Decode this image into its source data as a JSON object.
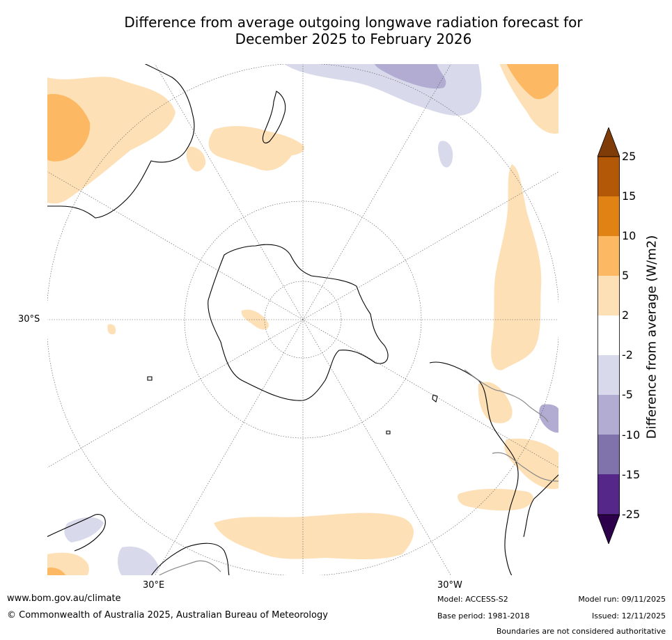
{
  "title": {
    "line1": "Difference from average outgoing longwave radiation forecast for",
    "line2": "December 2025 to February 2026"
  },
  "axis_labels": {
    "left_lat": "30°S",
    "bottom_left_lon": "30°E",
    "bottom_right_lon": "30°W"
  },
  "colorbar": {
    "label": "Difference from average (W/m2)",
    "ticks": [
      "25",
      "15",
      "10",
      "5",
      "2",
      "-2",
      "-5",
      "-10",
      "-15",
      "-25"
    ],
    "colors": {
      "gt25": "#7f3b08",
      "15_25": "#b35806",
      "10_15": "#e08214",
      "5_10": "#fdb863",
      "2_5": "#fee0b6",
      "m2_2": "#ffffff",
      "m5_m2": "#d8daeb",
      "m10_m5": "#b2abd2",
      "m15_m10": "#8073ac",
      "m25_m15": "#542788",
      "lt_m25": "#2d004b"
    }
  },
  "footer": {
    "url": "www.bom.gov.au/climate",
    "copyright": "© Commonwealth of Australia 2025, Australian Bureau of Meteorology",
    "model": "Model: ACCESS-S2",
    "base_period": "Base period: 1981-2018",
    "model_run": "Model run: 09/11/2025",
    "issued": "Issued: 12/11/2025",
    "disclaimer": "Boundaries are not considered authoritative"
  }
}
